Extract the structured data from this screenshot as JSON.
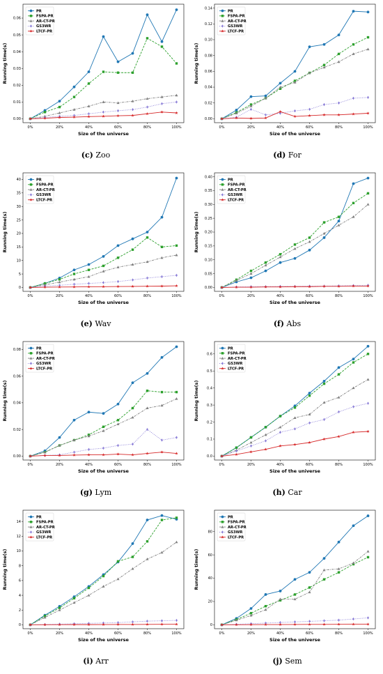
{
  "series_styles": [
    {
      "name": "PR",
      "color": "#1f77b4",
      "dash": "",
      "marker": "circle"
    },
    {
      "name": "FSPA-PR",
      "color": "#2ca02c",
      "dash": "3,1.6",
      "marker": "square"
    },
    {
      "name": "AR-CT-PR",
      "color": "#7f7f7f",
      "dash": "3,1.2,1,1.2",
      "marker": "triangle"
    },
    {
      "name": "GS3WR",
      "color": "#8c7fd8",
      "dash": "1,1.4",
      "marker": "diamond"
    },
    {
      "name": "LTCF-PR",
      "color": "#d62728",
      "dash": "",
      "marker": "star"
    }
  ],
  "chart_data": [
    {
      "type": "line",
      "letter": "(c)",
      "name": "Zoo",
      "xlabel": "Size of the universe",
      "ylabel": "Running time(s)",
      "x": [
        0,
        10,
        20,
        30,
        40,
        50,
        60,
        70,
        80,
        90,
        100
      ],
      "xticks": [
        "0%",
        "20%",
        "40%",
        "60%",
        "80%",
        "100%"
      ],
      "ylim": [
        0,
        0.066
      ],
      "yticks": [
        "0.00",
        "0.01",
        "0.02",
        "0.03",
        "0.04",
        "0.05",
        "0.06"
      ],
      "ytick_values": [
        0,
        0.01,
        0.02,
        0.03,
        0.04,
        0.05,
        0.06
      ],
      "series": [
        {
          "name": "PR",
          "values": [
            0,
            0.005,
            0.0105,
            0.019,
            0.028,
            0.049,
            0.034,
            0.039,
            0.062,
            0.046,
            0.065
          ]
        },
        {
          "name": "FSPA-PR",
          "values": [
            0,
            0.004,
            0.007,
            0.013,
            0.021,
            0.028,
            0.0275,
            0.0275,
            0.048,
            0.043,
            0.033
          ]
        },
        {
          "name": "AR-CT-PR",
          "values": [
            0,
            0.0015,
            0.0035,
            0.0055,
            0.0075,
            0.01,
            0.0095,
            0.0105,
            0.012,
            0.013,
            0.014
          ]
        },
        {
          "name": "GS3WR",
          "values": [
            0,
            0.0008,
            0.0015,
            0.002,
            0.003,
            0.004,
            0.0048,
            0.0055,
            0.007,
            0.009,
            0.01
          ]
        },
        {
          "name": "LTCF-PR",
          "values": [
            0,
            0.0003,
            0.0008,
            0.001,
            0.0013,
            0.0015,
            0.0018,
            0.002,
            0.003,
            0.004,
            0.0035
          ]
        }
      ]
    },
    {
      "type": "line",
      "letter": "(d)",
      "name": "For",
      "xlabel": "Size of the universe",
      "ylabel": "Running time(s)",
      "x": [
        0,
        10,
        20,
        30,
        40,
        50,
        60,
        70,
        80,
        90,
        100
      ],
      "xticks": [
        "0%",
        "20%",
        "40%",
        "60%",
        "80%",
        "100%"
      ],
      "ylim": [
        0,
        0.14
      ],
      "yticks": [
        "0.00",
        "0.02",
        "0.04",
        "0.06",
        "0.08",
        "0.10",
        "0.12",
        "0.14"
      ],
      "ytick_values": [
        0,
        0.02,
        0.04,
        0.06,
        0.08,
        0.1,
        0.12,
        0.14
      ],
      "series": [
        {
          "name": "PR",
          "values": [
            0,
            0.011,
            0.028,
            0.029,
            0.045,
            0.06,
            0.091,
            0.094,
            0.106,
            0.136,
            0.135
          ]
        },
        {
          "name": "FSPA-PR",
          "values": [
            0,
            0.008,
            0.018,
            0.026,
            0.038,
            0.048,
            0.058,
            0.068,
            0.082,
            0.094,
            0.103
          ]
        },
        {
          "name": "AR-CT-PR",
          "values": [
            0,
            0.007,
            0.016,
            0.026,
            0.04,
            0.046,
            0.058,
            0.065,
            0.072,
            0.082,
            0.088
          ]
        },
        {
          "name": "GS3WR",
          "values": [
            0,
            0.002,
            0.012,
            0.005,
            0.007,
            0.01,
            0.012,
            0.018,
            0.02,
            0.026,
            0.027
          ]
        },
        {
          "name": "LTCF-PR",
          "values": [
            0,
            0.001,
            0.0005,
            0.001,
            0.009,
            0.003,
            0.004,
            0.005,
            0.005,
            0.006,
            0.007
          ]
        }
      ]
    },
    {
      "type": "line",
      "letter": "(e)",
      "name": "Wav",
      "xlabel": "Size of the universe",
      "ylabel": "Running time(s)",
      "x": [
        0,
        10,
        20,
        30,
        40,
        50,
        60,
        70,
        80,
        90,
        100
      ],
      "xticks": [
        "0%",
        "20%",
        "40%",
        "60%",
        "80%",
        "100%"
      ],
      "ylim": [
        0,
        41
      ],
      "yticks": [
        "0",
        "5",
        "10",
        "15",
        "20",
        "25",
        "30",
        "35",
        "40"
      ],
      "ytick_values": [
        0,
        5,
        10,
        15,
        20,
        25,
        30,
        35,
        40
      ],
      "series": [
        {
          "name": "PR",
          "values": [
            0,
            1.5,
            3.5,
            6.5,
            8.5,
            11.5,
            15.5,
            18,
            20.5,
            26,
            40.5
          ]
        },
        {
          "name": "FSPA-PR",
          "values": [
            0,
            1.5,
            3,
            5,
            6.5,
            8,
            11,
            14,
            18.5,
            15,
            15.5
          ]
        },
        {
          "name": "AR-CT-PR",
          "values": [
            0,
            1,
            2,
            3,
            4,
            6,
            7.5,
            8.5,
            9.5,
            11,
            12
          ]
        },
        {
          "name": "GS3WR",
          "values": [
            0,
            0.5,
            0.8,
            1.2,
            1.5,
            1.8,
            2.2,
            2.8,
            3.5,
            4,
            4.5
          ]
        },
        {
          "name": "LTCF-PR",
          "values": [
            0,
            0.1,
            0.15,
            0.2,
            0.25,
            0.3,
            0.35,
            0.4,
            0.45,
            0.5,
            0.6
          ]
        }
      ]
    },
    {
      "type": "line",
      "letter": "(f)",
      "name": "Abs",
      "xlabel": "Size of the universe",
      "ylabel": "Running time(s)",
      "x": [
        0,
        10,
        20,
        30,
        40,
        50,
        60,
        70,
        80,
        90,
        100
      ],
      "xticks": [
        "0%",
        "20%",
        "40%",
        "60%",
        "80%",
        "100%"
      ],
      "ylim": [
        0,
        0.4
      ],
      "yticks": [
        "0.00",
        "0.05",
        "0.10",
        "0.15",
        "0.20",
        "0.25",
        "0.30",
        "0.35",
        "0.40"
      ],
      "ytick_values": [
        0,
        0.05,
        0.1,
        0.15,
        0.2,
        0.25,
        0.3,
        0.35,
        0.4
      ],
      "series": [
        {
          "name": "PR",
          "values": [
            0,
            0.02,
            0.035,
            0.06,
            0.09,
            0.105,
            0.135,
            0.18,
            0.24,
            0.375,
            0.395
          ]
        },
        {
          "name": "FSPA-PR",
          "values": [
            0,
            0.028,
            0.06,
            0.09,
            0.12,
            0.155,
            0.18,
            0.235,
            0.255,
            0.305,
            0.34
          ]
        },
        {
          "name": "AR-CT-PR",
          "values": [
            0,
            0.025,
            0.05,
            0.08,
            0.11,
            0.14,
            0.165,
            0.195,
            0.225,
            0.255,
            0.3
          ]
        },
        {
          "name": "GS3WR",
          "values": [
            0,
            0.002,
            0.003,
            0.003,
            0.004,
            0.004,
            0.005,
            0.005,
            0.006,
            0.007,
            0.008
          ]
        },
        {
          "name": "LTCF-PR",
          "values": [
            0,
            0.001,
            0.001,
            0.002,
            0.002,
            0.003,
            0.003,
            0.004,
            0.004,
            0.005,
            0.005
          ]
        }
      ]
    },
    {
      "type": "line",
      "letter": "(g)",
      "name": "Lym",
      "xlabel": "Size of the universe",
      "ylabel": "Running time(s)",
      "x": [
        0,
        10,
        20,
        30,
        40,
        50,
        60,
        70,
        80,
        90,
        100
      ],
      "xticks": [
        "0%",
        "20%",
        "40%",
        "60%",
        "80%",
        "100%"
      ],
      "ylim": [
        0,
        0.083
      ],
      "yticks": [
        "0.00",
        "0.02",
        "0.04",
        "0.06",
        "0.08"
      ],
      "ytick_values": [
        0,
        0.02,
        0.04,
        0.06,
        0.08
      ],
      "series": [
        {
          "name": "PR",
          "values": [
            0,
            0.004,
            0.014,
            0.027,
            0.033,
            0.032,
            0.039,
            0.055,
            0.062,
            0.074,
            0.082
          ]
        },
        {
          "name": "FSPA-PR",
          "values": [
            0,
            0.003,
            0.008,
            0.012,
            0.016,
            0.022,
            0.027,
            0.036,
            0.049,
            0.048,
            0.048
          ]
        },
        {
          "name": "AR-CT-PR",
          "values": [
            0,
            0.003,
            0.008,
            0.012,
            0.015,
            0.019,
            0.024,
            0.029,
            0.036,
            0.038,
            0.043
          ]
        },
        {
          "name": "GS3WR",
          "values": [
            0,
            0.0005,
            0.001,
            0.003,
            0.005,
            0.006,
            0.008,
            0.009,
            0.02,
            0.012,
            0.014
          ]
        },
        {
          "name": "LTCF-PR",
          "values": [
            0,
            0.0005,
            0.0005,
            0.0008,
            0.001,
            0.001,
            0.0015,
            0.001,
            0.002,
            0.003,
            0.002
          ]
        }
      ]
    },
    {
      "type": "line",
      "letter": "(h)",
      "name": "Car",
      "xlabel": "Size of the universe",
      "ylabel": "Running time(s)",
      "x": [
        0,
        10,
        20,
        30,
        40,
        50,
        60,
        70,
        80,
        90,
        100
      ],
      "xticks": [
        "0%",
        "20%",
        "40%",
        "60%",
        "80%",
        "100%"
      ],
      "ylim": [
        0,
        0.65
      ],
      "yticks": [
        "0.0",
        "0.1",
        "0.2",
        "0.3",
        "0.4",
        "0.5",
        "0.6"
      ],
      "ytick_values": [
        0,
        0.1,
        0.2,
        0.3,
        0.4,
        0.5,
        0.6
      ],
      "series": [
        {
          "name": "PR",
          "values": [
            0,
            0.05,
            0.11,
            0.17,
            0.235,
            0.295,
            0.37,
            0.44,
            0.52,
            0.57,
            0.645
          ]
        },
        {
          "name": "FSPA-PR",
          "values": [
            0,
            0.05,
            0.11,
            0.17,
            0.235,
            0.285,
            0.355,
            0.425,
            0.48,
            0.55,
            0.6
          ]
        },
        {
          "name": "AR-CT-PR",
          "values": [
            0,
            0.035,
            0.08,
            0.125,
            0.17,
            0.225,
            0.245,
            0.315,
            0.345,
            0.4,
            0.45
          ]
        },
        {
          "name": "GS3WR",
          "values": [
            0,
            0.03,
            0.06,
            0.09,
            0.14,
            0.16,
            0.195,
            0.215,
            0.26,
            0.29,
            0.31
          ]
        },
        {
          "name": "LTCF-PR",
          "values": [
            0,
            0.01,
            0.025,
            0.04,
            0.06,
            0.068,
            0.08,
            0.1,
            0.115,
            0.14,
            0.145
          ]
        }
      ]
    },
    {
      "type": "line",
      "letter": "(i)",
      "name": "Arr",
      "xlabel": "Size of the universe",
      "ylabel": "Running time(s)",
      "x": [
        0,
        10,
        20,
        30,
        40,
        50,
        60,
        70,
        80,
        90,
        100
      ],
      "xticks": [
        "0%",
        "20%",
        "40%",
        "60%",
        "80%",
        "100%"
      ],
      "ylim": [
        0,
        15
      ],
      "yticks": [
        "0",
        "2",
        "4",
        "6",
        "8",
        "10",
        "12",
        "14"
      ],
      "ytick_values": [
        0,
        2,
        4,
        6,
        8,
        10,
        12,
        14
      ],
      "series": [
        {
          "name": "PR",
          "values": [
            0,
            1.3,
            2.5,
            3.8,
            5.2,
            6.8,
            8.5,
            11,
            14.2,
            14.8,
            14.3
          ]
        },
        {
          "name": "FSPA-PR",
          "values": [
            0,
            1.2,
            2.3,
            3.6,
            5,
            6.6,
            8.6,
            9.2,
            11.3,
            14.2,
            14.5
          ]
        },
        {
          "name": "AR-CT-PR",
          "values": [
            0,
            1,
            2,
            3,
            4,
            5.2,
            6.2,
            7.6,
            8.9,
            9.8,
            11.2
          ]
        },
        {
          "name": "GS3WR",
          "values": [
            0,
            0.05,
            0.1,
            0.15,
            0.2,
            0.25,
            0.3,
            0.4,
            0.5,
            0.55,
            0.6
          ]
        },
        {
          "name": "LTCF-PR",
          "values": [
            0,
            0.01,
            0.02,
            0.03,
            0.03,
            0.04,
            0.05,
            0.05,
            0.06,
            0.07,
            0.08
          ]
        }
      ]
    },
    {
      "type": "line",
      "letter": "(j)",
      "name": "Sem",
      "xlabel": "Size of the universe",
      "ylabel": "Running time(s)",
      "x": [
        0,
        10,
        20,
        30,
        40,
        50,
        60,
        70,
        80,
        90,
        100
      ],
      "xticks": [
        "0%",
        "20%",
        "40%",
        "60%",
        "80%",
        "100%"
      ],
      "ylim": [
        0,
        95
      ],
      "yticks": [
        "0",
        "20",
        "40",
        "60",
        "80"
      ],
      "ytick_values": [
        0,
        20,
        40,
        60,
        80
      ],
      "series": [
        {
          "name": "PR",
          "values": [
            0,
            5.5,
            14,
            26,
            29,
            39,
            45,
            57,
            71,
            85,
            93.5
          ]
        },
        {
          "name": "FSPA-PR",
          "values": [
            0,
            4.5,
            10,
            16,
            21,
            26,
            32,
            39,
            45,
            52,
            58
          ]
        },
        {
          "name": "AR-CT-PR",
          "values": [
            0,
            4,
            8,
            13,
            22,
            22,
            28,
            47,
            48,
            53,
            63
          ]
        },
        {
          "name": "GS3WR",
          "values": [
            0,
            0.5,
            1,
            1.5,
            2,
            2.5,
            3,
            3.5,
            4,
            5,
            6
          ]
        },
        {
          "name": "LTCF-PR",
          "values": [
            0,
            0.1,
            0.15,
            0.2,
            0.25,
            0.3,
            0.35,
            0.4,
            0.45,
            0.5,
            0.5
          ]
        }
      ]
    }
  ]
}
